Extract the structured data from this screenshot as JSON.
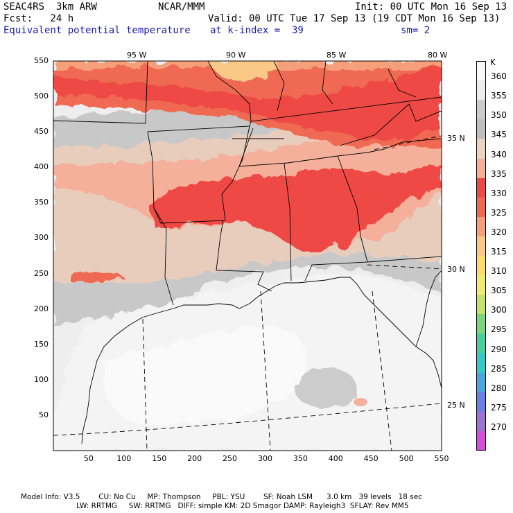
{
  "header": {
    "model": "SEAC4RS  3km ARW",
    "org": "NCAR/MMM",
    "init": "Init: 00 UTC Mon 16 Sep 13",
    "fcst": "Fcst:   24 h",
    "valid": "Valid: 00 UTC Tue 17 Sep 13 (19 CDT Mon 16 Sep 13)",
    "field": "Equivalent potential temperature",
    "level": "at k-index =  39",
    "smooth": "sm= 2"
  },
  "map": {
    "lon_labels": [
      "95 W",
      "90 W",
      "85 W",
      "80 W"
    ],
    "lat_labels": [
      "35 N",
      "30 N",
      "25 N"
    ],
    "x_ticks": [
      "50",
      "100",
      "150",
      "200",
      "250",
      "300",
      "350",
      "400",
      "450",
      "500",
      "550"
    ],
    "y_ticks": [
      "550",
      "500",
      "450",
      "400",
      "350",
      "300",
      "250",
      "200",
      "150",
      "100",
      "50"
    ]
  },
  "colorbar": {
    "unit": "K",
    "levels": [
      "360",
      "355",
      "350",
      "345",
      "340",
      "335",
      "330",
      "325",
      "320",
      "315",
      "310",
      "305",
      "300",
      "295",
      "290",
      "285",
      "280",
      "275",
      "270"
    ],
    "colors": [
      "#f8f8f8",
      "#ececec",
      "#cccccc",
      "#bfbfbf",
      "#ead3c1",
      "#f4b09a",
      "#ee4a45",
      "#f06a52",
      "#f5a07a",
      "#fac887",
      "#fddc6e",
      "#f1eb74",
      "#c4e36a",
      "#7ed67a",
      "#4ccf9e",
      "#34c8c6",
      "#4aa6e1",
      "#6c7fe6",
      "#9b74d4",
      "#d14fd6"
    ]
  },
  "footer": {
    "line1": "Model Info: V3.5        CU: No Cu     MP: Thompson     PBL: YSU        SF: Noah LSM      3.0 km   39 levels   18 sec",
    "line2": "                        LW: RRTMG     SW: RRTMG   DIFF: simple KM: 2D Smagor DAMP: Rayleigh3  SFLAY: Rev MM5"
  }
}
